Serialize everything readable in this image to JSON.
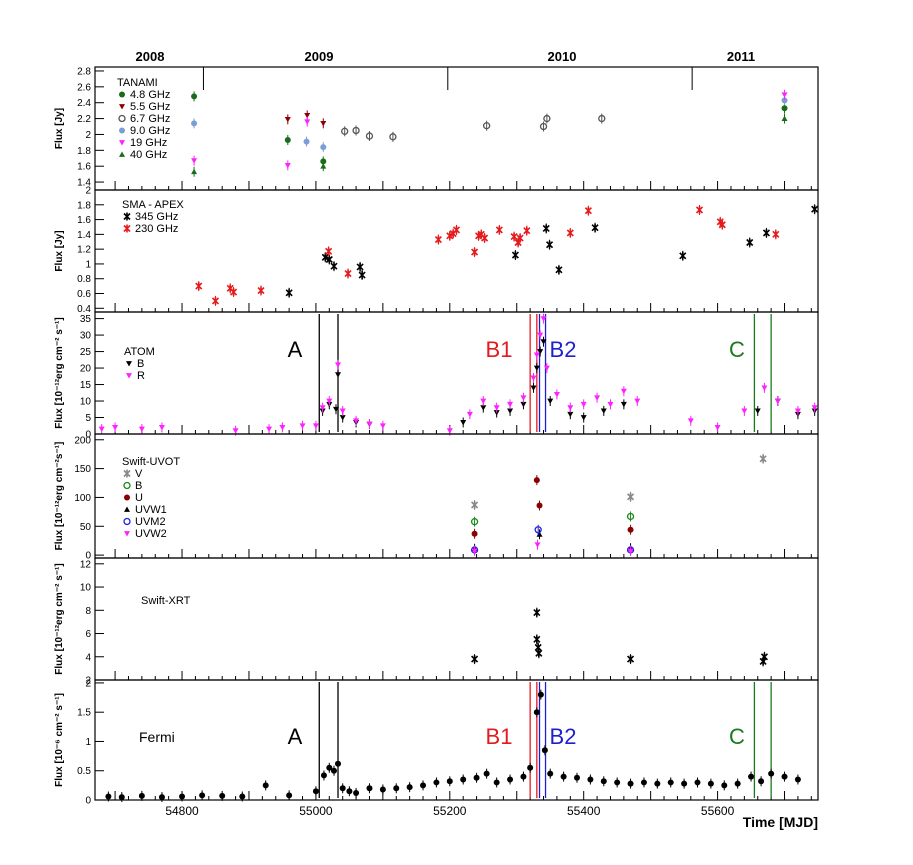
{
  "figure": {
    "xlabel": "Time [MJD]",
    "year_labels": [
      {
        "label": "2008",
        "mjd": 54466
      },
      {
        "label": "2009",
        "mjd": 54832
      },
      {
        "label": "2010",
        "mjd": 55197
      },
      {
        "label": "2011",
        "mjd": 55562
      }
    ],
    "xlim": [
      54670,
      55750
    ],
    "x_ticks": [
      54800,
      55000,
      55200,
      55400,
      55600
    ],
    "flare_markers": [
      {
        "label": "A",
        "color": "#000000",
        "lines": [
          55005,
          55033
        ]
      },
      {
        "label": "B1",
        "color": "#e41a1c",
        "lines": [
          55320,
          55330
        ]
      },
      {
        "label": "B2",
        "color": "#1f1fd0",
        "lines": [
          55334,
          55343
        ]
      },
      {
        "label": "C",
        "color": "#1a7a1a",
        "lines": [
          55655,
          55680
        ]
      }
    ]
  },
  "chart_data": [
    {
      "type": "scatter",
      "panel": "TANAMI",
      "title": "TANAMI",
      "ylabel": "Flux [Jy]",
      "ylim": [
        1.3,
        2.85
      ],
      "y_ticks": [
        1.4,
        1.6,
        1.8,
        2,
        2.2,
        2.4,
        2.6,
        2.8
      ],
      "series": [
        {
          "name": "4.8 GHz",
          "color": "#1a6b1a",
          "marker": "circle",
          "points": [
            [
              54818,
              2.48
            ],
            [
              54958,
              1.93
            ],
            [
              55011,
              1.66
            ],
            [
              55700,
              2.33
            ]
          ]
        },
        {
          "name": "5.5 GHz",
          "color": "#8b0000",
          "marker": "tri-down",
          "points": [
            [
              54958,
              2.19
            ],
            [
              54987,
              2.24
            ],
            [
              55011,
              2.14
            ]
          ]
        },
        {
          "name": "6.7 GHz",
          "color": "#555555",
          "marker": "open-circle",
          "points": [
            [
              55043,
              2.04
            ],
            [
              55060,
              2.05
            ],
            [
              55080,
              1.98
            ],
            [
              55115,
              1.97
            ],
            [
              55255,
              2.11
            ],
            [
              55340,
              2.1
            ],
            [
              55345,
              2.2
            ],
            [
              55427,
              2.2
            ]
          ]
        },
        {
          "name": "9.0 GHz",
          "color": "#7a9fd4",
          "marker": "circle",
          "points": [
            [
              54818,
              2.14
            ],
            [
              54986,
              1.91
            ],
            [
              55011,
              1.84
            ],
            [
              55700,
              2.43
            ]
          ]
        },
        {
          "name": "19 GHz",
          "color": "#ff22ff",
          "marker": "tri-down",
          "points": [
            [
              54818,
              1.67
            ],
            [
              54958,
              1.61
            ],
            [
              54987,
              2.16
            ],
            [
              55700,
              2.5
            ]
          ]
        },
        {
          "name": "40 GHz",
          "color": "#1a6b1a",
          "marker": "tri-up",
          "points": [
            [
              54818,
              1.53
            ],
            [
              55011,
              1.6
            ],
            [
              55700,
              2.2
            ]
          ]
        }
      ]
    },
    {
      "type": "scatter",
      "panel": "SMA - APEX",
      "title": "SMA - APEX",
      "ylabel": "Flux [Jy]",
      "ylim": [
        0.35,
        2.0
      ],
      "y_ticks": [
        0.4,
        0.6,
        0.8,
        1,
        1.2,
        1.4,
        1.6,
        1.8,
        2
      ],
      "series": [
        {
          "name": "345 GHz",
          "color": "#000000",
          "marker": "star",
          "points": [
            [
              54960,
              0.61
            ],
            [
              55014,
              1.09
            ],
            [
              55020,
              1.06
            ],
            [
              55027,
              0.97
            ],
            [
              55066,
              0.96
            ],
            [
              55069,
              0.85
            ],
            [
              55298,
              1.12
            ],
            [
              55344,
              1.48
            ],
            [
              55349,
              1.26
            ],
            [
              55363,
              0.92
            ],
            [
              55417,
              1.49
            ],
            [
              55548,
              1.11
            ],
            [
              55648,
              1.29
            ],
            [
              55673,
              1.42
            ],
            [
              55745,
              1.74
            ]
          ]
        },
        {
          "name": "230 GHz",
          "color": "#e41a1c",
          "marker": "star",
          "points": [
            [
              54825,
              0.7
            ],
            [
              54850,
              0.5
            ],
            [
              54872,
              0.67
            ],
            [
              54877,
              0.62
            ],
            [
              54918,
              0.64
            ],
            [
              55019,
              1.17
            ],
            [
              55048,
              0.87
            ],
            [
              55183,
              1.33
            ],
            [
              55200,
              1.38
            ],
            [
              55205,
              1.41
            ],
            [
              55210,
              1.46
            ],
            [
              55237,
              1.16
            ],
            [
              55243,
              1.38
            ],
            [
              55247,
              1.4
            ],
            [
              55252,
              1.35
            ],
            [
              55274,
              1.46
            ],
            [
              55296,
              1.37
            ],
            [
              55302,
              1.29
            ],
            [
              55305,
              1.35
            ],
            [
              55315,
              1.45
            ],
            [
              55380,
              1.42
            ],
            [
              55407,
              1.72
            ],
            [
              55573,
              1.73
            ],
            [
              55604,
              1.57
            ],
            [
              55607,
              1.53
            ],
            [
              55687,
              1.4
            ]
          ]
        }
      ]
    },
    {
      "type": "scatter",
      "panel": "ATOM",
      "title": "ATOM",
      "ylabel": "Flux [10⁻¹²erg cm⁻² s⁻¹]",
      "ylim": [
        0,
        37
      ],
      "y_ticks": [
        0,
        5,
        10,
        15,
        20,
        25,
        30,
        35
      ],
      "series": [
        {
          "name": "B",
          "color": "#000000",
          "marker": "tri-down",
          "points": [
            [
              55010,
              7
            ],
            [
              55020,
              9
            ],
            [
              55030,
              7.5
            ],
            [
              55033,
              18
            ],
            [
              55040,
              5
            ],
            [
              55060,
              3.5
            ],
            [
              55080,
              3
            ],
            [
              55220,
              3.5
            ],
            [
              55250,
              8
            ],
            [
              55270,
              6.5
            ],
            [
              55290,
              7
            ],
            [
              55310,
              9
            ],
            [
              55325,
              14
            ],
            [
              55330,
              20
            ],
            [
              55335,
              25
            ],
            [
              55340,
              28
            ],
            [
              55350,
              10
            ],
            [
              55380,
              6
            ],
            [
              55400,
              5
            ],
            [
              55430,
              7
            ],
            [
              55460,
              9
            ],
            [
              55660,
              7
            ],
            [
              55690,
              10
            ],
            [
              55720,
              6
            ],
            [
              55745,
              7
            ]
          ]
        },
        {
          "name": "R",
          "color": "#ff22ff",
          "marker": "tri-down",
          "points": [
            [
              54680,
              1.5
            ],
            [
              54700,
              2
            ],
            [
              54740,
              1.5
            ],
            [
              54770,
              2
            ],
            [
              54880,
              1
            ],
            [
              54930,
              1.5
            ],
            [
              54950,
              2
            ],
            [
              54980,
              2.5
            ],
            [
              55000,
              2.5
            ],
            [
              55010,
              8
            ],
            [
              55020,
              10
            ],
            [
              55033,
              21
            ],
            [
              55040,
              7
            ],
            [
              55060,
              4
            ],
            [
              55080,
              3
            ],
            [
              55100,
              2.5
            ],
            [
              55200,
              1
            ],
            [
              55230,
              6
            ],
            [
              55250,
              10
            ],
            [
              55270,
              8
            ],
            [
              55290,
              9
            ],
            [
              55310,
              11
            ],
            [
              55325,
              17
            ],
            [
              55330,
              24
            ],
            [
              55335,
              30
            ],
            [
              55340,
              35
            ],
            [
              55345,
              20
            ],
            [
              55360,
              12
            ],
            [
              55380,
              8
            ],
            [
              55400,
              9
            ],
            [
              55420,
              11
            ],
            [
              55440,
              9
            ],
            [
              55460,
              13
            ],
            [
              55480,
              10
            ],
            [
              55560,
              4
            ],
            [
              55600,
              2
            ],
            [
              55640,
              7
            ],
            [
              55670,
              14
            ],
            [
              55690,
              10
            ],
            [
              55720,
              7
            ],
            [
              55745,
              8
            ]
          ]
        }
      ]
    },
    {
      "type": "scatter",
      "panel": "Swift-UVOT",
      "title": "Swift-UVOT",
      "ylabel": "Flux [10⁻¹²erg cm⁻²s⁻¹]",
      "ylim": [
        -5,
        210
      ],
      "y_ticks": [
        0,
        50,
        100,
        150,
        200
      ],
      "series": [
        {
          "name": "V",
          "color": "#888888",
          "marker": "star",
          "points": [
            [
              55237,
              87
            ],
            [
              55470,
              101
            ],
            [
              55668,
              167
            ]
          ]
        },
        {
          "name": "B",
          "color": "#1a8a1a",
          "marker": "open-circle",
          "points": [
            [
              55237,
              58
            ],
            [
              55470,
              67
            ]
          ]
        },
        {
          "name": "U",
          "color": "#8b0000",
          "marker": "circle",
          "points": [
            [
              55237,
              37
            ],
            [
              55330,
              130
            ],
            [
              55334,
              86
            ],
            [
              55470,
              44
            ]
          ]
        },
        {
          "name": "UVW1",
          "color": "#000000",
          "marker": "tri-up",
          "points": [
            [
              55237,
              11
            ],
            [
              55334,
              36
            ],
            [
              55470,
              12
            ]
          ]
        },
        {
          "name": "UVM2",
          "color": "#2222dd",
          "marker": "open-circle",
          "points": [
            [
              55237,
              9
            ],
            [
              55332,
              44
            ],
            [
              55470,
              9
            ]
          ]
        },
        {
          "name": "UVW2",
          "color": "#ff22ff",
          "marker": "tri-down",
          "points": [
            [
              55237,
              7
            ],
            [
              55331,
              18
            ],
            [
              55470,
              7
            ]
          ]
        }
      ]
    },
    {
      "type": "scatter",
      "panel": "Swift-XRT",
      "title": "Swift-XRT",
      "ylabel": "Flux [10⁻¹²erg cm⁻² s⁻¹]",
      "ylim": [
        2,
        12.5
      ],
      "y_ticks": [
        2,
        4,
        6,
        8,
        10,
        12
      ],
      "series": [
        {
          "name": "Swift-XRT",
          "color": "#000000",
          "marker": "star",
          "points": [
            [
              55237,
              3.8
            ],
            [
              55330,
              7.8
            ],
            [
              55330,
              5.5
            ],
            [
              55332,
              4.8
            ],
            [
              55333,
              4.3
            ],
            [
              55470,
              3.8
            ],
            [
              55668,
              3.6
            ],
            [
              55670,
              4.0
            ]
          ]
        }
      ]
    },
    {
      "type": "scatter",
      "panel": "Fermi",
      "title": "Fermi",
      "ylabel": "Flux [10⁻⁶ cm⁻² s⁻¹]",
      "ylim": [
        0,
        2.05
      ],
      "y_ticks": [
        0,
        0.5,
        1,
        1.5,
        2
      ],
      "series": [
        {
          "name": "Fermi",
          "color": "#000000",
          "marker": "circle",
          "points": [
            [
              54690,
              0.06
            ],
            [
              54710,
              0.05
            ],
            [
              54740,
              0.07
            ],
            [
              54770,
              0.05
            ],
            [
              54800,
              0.06
            ],
            [
              54830,
              0.08
            ],
            [
              54860,
              0.07
            ],
            [
              54890,
              0.06
            ],
            [
              54925,
              0.25
            ],
            [
              54960,
              0.08
            ],
            [
              55000,
              0.15
            ],
            [
              55012,
              0.42
            ],
            [
              55020,
              0.55
            ],
            [
              55027,
              0.5
            ],
            [
              55033,
              0.62
            ],
            [
              55040,
              0.2
            ],
            [
              55050,
              0.15
            ],
            [
              55060,
              0.12
            ],
            [
              55080,
              0.2
            ],
            [
              55100,
              0.18
            ],
            [
              55120,
              0.2
            ],
            [
              55140,
              0.22
            ],
            [
              55160,
              0.25
            ],
            [
              55180,
              0.3
            ],
            [
              55200,
              0.32
            ],
            [
              55220,
              0.35
            ],
            [
              55240,
              0.38
            ],
            [
              55255,
              0.45
            ],
            [
              55270,
              0.3
            ],
            [
              55290,
              0.35
            ],
            [
              55310,
              0.4
            ],
            [
              55320,
              0.55
            ],
            [
              55330,
              1.5
            ],
            [
              55336,
              1.8
            ],
            [
              55342,
              0.85
            ],
            [
              55350,
              0.45
            ],
            [
              55370,
              0.4
            ],
            [
              55390,
              0.38
            ],
            [
              55410,
              0.35
            ],
            [
              55430,
              0.32
            ],
            [
              55450,
              0.3
            ],
            [
              55470,
              0.28
            ],
            [
              55490,
              0.3
            ],
            [
              55510,
              0.28
            ],
            [
              55530,
              0.3
            ],
            [
              55550,
              0.28
            ],
            [
              55570,
              0.3
            ],
            [
              55590,
              0.28
            ],
            [
              55610,
              0.25
            ],
            [
              55630,
              0.28
            ],
            [
              55650,
              0.4
            ],
            [
              55665,
              0.32
            ],
            [
              55680,
              0.45
            ],
            [
              55700,
              0.4
            ],
            [
              55720,
              0.35
            ]
          ]
        }
      ]
    }
  ]
}
